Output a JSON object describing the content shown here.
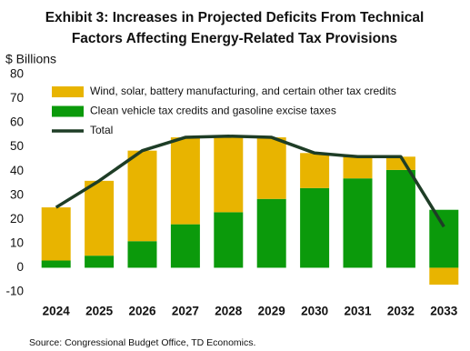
{
  "chart_data": {
    "type": "bar",
    "title": [
      "Exhibit 3: Increases in Projected Deficits From Technical",
      "Factors Affecting Energy-Related Tax Provisions"
    ],
    "y_label": "$ Billions",
    "source": "Source: Congressional Budget Office, TD Economics.",
    "categories": [
      "2024",
      "2025",
      "2026",
      "2027",
      "2028",
      "2029",
      "2030",
      "2031",
      "2032",
      "2033"
    ],
    "stacked": true,
    "series": [
      {
        "name": "Wind, solar, battery manufacturing, and certain other tax credits",
        "color": "#e8b400",
        "values": [
          22,
          31,
          37.5,
          36,
          31.5,
          25.5,
          14.5,
          9,
          5.5,
          -7
        ]
      },
      {
        "name": "Clean vehicle tax credits and gasoline excise taxes",
        "color": "#0b9a0b",
        "values": [
          3,
          5,
          11,
          18,
          23,
          28.5,
          33,
          37,
          40.5,
          24
        ]
      },
      {
        "name": "Total",
        "type": "line",
        "color": "#1e3d26",
        "values": [
          25,
          36,
          48.5,
          54,
          54.5,
          54,
          47.5,
          46,
          46,
          17
        ]
      }
    ],
    "ylim": [
      -10,
      80
    ],
    "yticks": [
      -10,
      0,
      10,
      20,
      30,
      40,
      50,
      60,
      70,
      80
    ],
    "legend": "top-left"
  }
}
